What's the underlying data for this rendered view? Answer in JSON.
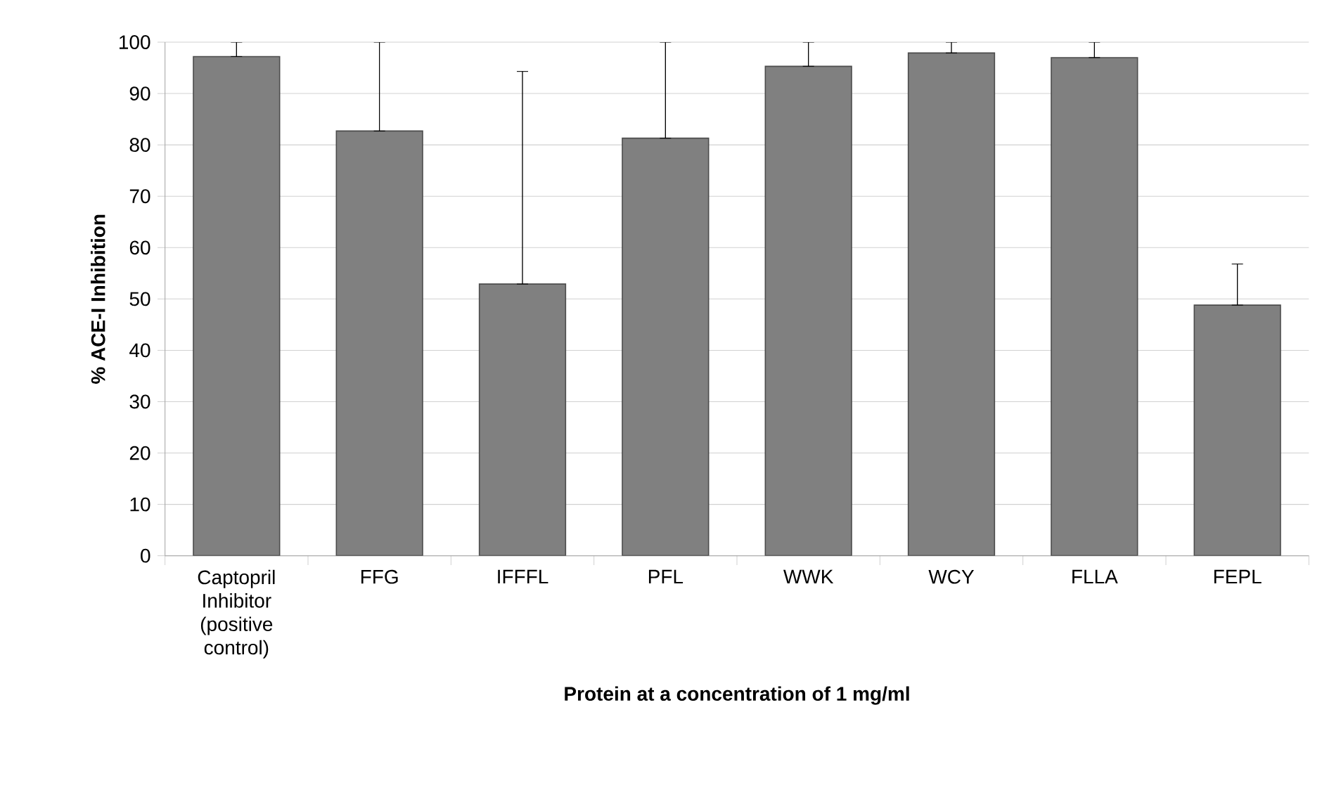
{
  "chart_data": {
    "type": "bar",
    "xlabel": "Protein at a concentration of 1 mg/ml",
    "ylabel": "% ACE-I Inhibition",
    "categories": [
      "Captopril Inhibitor (positive control)",
      "FFG",
      "IFFFL",
      "PFL",
      "WWK",
      "WCY",
      "FLLA",
      "FEPL"
    ],
    "values": [
      97.2,
      82.7,
      52.9,
      81.3,
      95.3,
      97.9,
      97.0,
      48.8
    ],
    "errors": [
      [
        97.2,
        100
      ],
      [
        82.7,
        100
      ],
      [
        52.9,
        94.3
      ],
      [
        81.3,
        100
      ],
      [
        95.3,
        100
      ],
      [
        97.9,
        100
      ],
      [
        97.0,
        100
      ],
      [
        48.8,
        56.8
      ]
    ],
    "color": "#808080",
    "ylim": [
      0,
      100
    ],
    "yticks": [
      0,
      10,
      20,
      30,
      40,
      50,
      60,
      70,
      80,
      90,
      100
    ],
    "grid": "y"
  }
}
